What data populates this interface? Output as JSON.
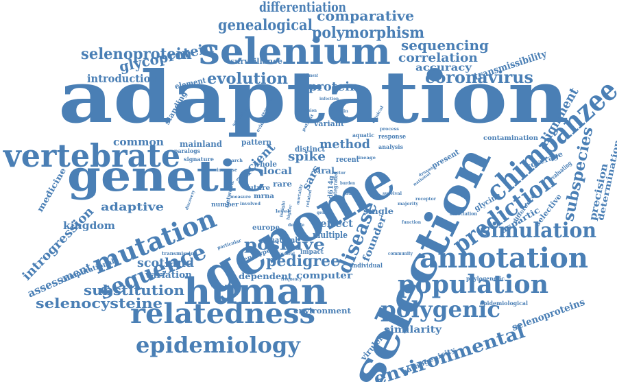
{
  "color": "#4a7fb5",
  "words": [
    "adaptation",
    "genome",
    "selection",
    "genetic",
    "human",
    "selenium",
    "vertebrate",
    "chimpanzee",
    "mutation",
    "relatedness",
    "annotation",
    "population",
    "prediction",
    "sequence",
    "epidemiology",
    "polygenic",
    "environmental",
    "simulation",
    "disease",
    "coronavirus",
    "selenoprotein",
    "evolution",
    "introduction",
    "polymorphism",
    "genealogical",
    "differentiation",
    "comparative",
    "glycoprotein",
    "sequencing",
    "correlation",
    "accuracy",
    "transmissibility",
    "subspecies",
    "alignment",
    "pedigree",
    "positive",
    "substitution",
    "selenocysteine",
    "scotland",
    "assessment",
    "introgression",
    "adaptive",
    "kingdom",
    "method",
    "spike",
    "ancient",
    "protein",
    "common",
    "mainland",
    "local",
    "effect",
    "multiple",
    "founder",
    "similarity",
    "virulence",
    "selenoproteins",
    "precision",
    "determination",
    "aspartic",
    "coverage",
    "contamination",
    "medicine",
    "computer",
    "dependent",
    "environment",
    "variation",
    "computational",
    "pathogenicity",
    "standing",
    "element",
    "variant",
    "sars",
    "whole",
    "rare",
    "viral",
    "recent",
    "distinct",
    "pattern",
    "surveillance",
    "glycine",
    "selective",
    "present",
    "single",
    "evaluating",
    "individual",
    "mrna",
    "future",
    "impact",
    "genotype",
    "natural",
    "europe",
    "network",
    "transmission",
    "signature",
    "paralogs",
    "increase",
    "number",
    "analysis",
    "response",
    "aquatic",
    "epidemiological",
    "phylogenetic",
    "community",
    "d614g",
    "integrated",
    "association",
    "difference",
    "majority",
    "national",
    "admission",
    "advantage",
    "enrichment",
    "infection",
    "habitat",
    "remain",
    "involved",
    "particular",
    "discovery",
    "measure",
    "function",
    "frequency",
    "level",
    "mortality",
    "related",
    "search",
    "cause",
    "insight",
    "higher",
    "decade",
    "receptor",
    "survival",
    "dynamic",
    "control",
    "patient",
    "evidence",
    "resource",
    "genus",
    "burden",
    "factor",
    "process",
    "lineage",
    "clinical"
  ]
}
